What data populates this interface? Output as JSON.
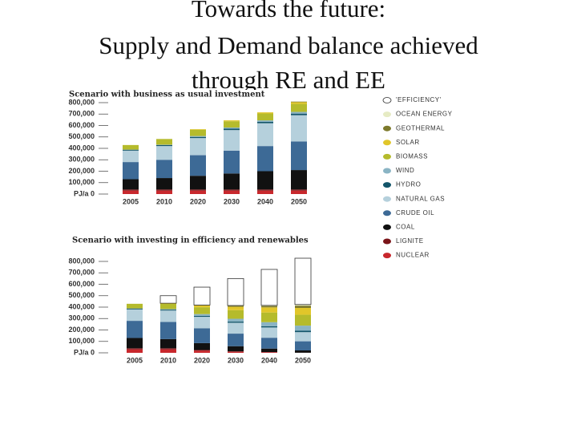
{
  "header": {
    "title": "Towards the future:",
    "subtitle_line1": "Supply and Demand balance achieved",
    "subtitle_line2": "through RE and EE"
  },
  "chart_data": [
    {
      "type": "stacked-bar",
      "title": "Scenario with business as usual investment",
      "categories": [
        "2005",
        "2010",
        "2020",
        "2030",
        "2040",
        "2050"
      ],
      "ylim": [
        0,
        800000
      ],
      "yticks": [
        {
          "value": 0,
          "label": "PJ/a 0"
        },
        {
          "value": 100000,
          "label": "100,000"
        },
        {
          "value": 200000,
          "label": "200,000"
        },
        {
          "value": 300000,
          "label": "300,000"
        },
        {
          "value": 400000,
          "label": "400,000"
        },
        {
          "value": 500000,
          "label": "500,000"
        },
        {
          "value": 600000,
          "label": "600,000"
        },
        {
          "value": 700000,
          "label": "700,000"
        },
        {
          "value": 800000,
          "label": "800,000"
        }
      ],
      "series": [
        {
          "name": "NUCLEAR",
          "color": "#c8282d",
          "values": [
            30000,
            30000,
            30000,
            30000,
            30000,
            30000
          ]
        },
        {
          "name": "LIGNITE",
          "color": "#7a1418",
          "values": [
            10000,
            10000,
            10000,
            10000,
            10000,
            10000
          ]
        },
        {
          "name": "COAL",
          "color": "#111111",
          "values": [
            90000,
            100000,
            120000,
            140000,
            160000,
            170000
          ]
        },
        {
          "name": "CRUDE OIL",
          "color": "#3d6a96",
          "values": [
            150000,
            160000,
            180000,
            200000,
            220000,
            250000
          ]
        },
        {
          "name": "NATURAL GAS",
          "color": "#b5d0dc",
          "values": [
            100000,
            120000,
            150000,
            180000,
            200000,
            230000
          ]
        },
        {
          "name": "HYDRO",
          "color": "#13556a",
          "values": [
            8000,
            9000,
            10000,
            12000,
            13000,
            14000
          ]
        },
        {
          "name": "WIND",
          "color": "#8ab4c4",
          "values": [
            1000,
            3000,
            8000,
            10000,
            12000,
            15000
          ]
        },
        {
          "name": "BIOMASS",
          "color": "#b5bb2c",
          "values": [
            40000,
            50000,
            55000,
            55000,
            60000,
            70000
          ]
        },
        {
          "name": "SOLAR",
          "color": "#e1c62a",
          "values": [
            0,
            0,
            5000,
            8000,
            10000,
            15000
          ]
        },
        {
          "name": "GEOTHERMAL",
          "color": "#7d7a2c",
          "values": [
            0,
            0,
            0,
            0,
            0,
            5000
          ]
        },
        {
          "name": "OCEAN ENERGY",
          "color": "#e6ebc4",
          "values": [
            0,
            0,
            0,
            0,
            0,
            0
          ]
        },
        {
          "name": "'EFFICIENCY'",
          "color": "#ffffff",
          "values": [
            0,
            0,
            0,
            0,
            0,
            0
          ]
        }
      ]
    },
    {
      "type": "stacked-bar",
      "title": "Scenario with  investing in efficiency and renewables",
      "categories": [
        "2005",
        "2010",
        "2020",
        "2030",
        "2040",
        "2050"
      ],
      "ylim": [
        0,
        800000
      ],
      "yticks": [
        {
          "value": 0,
          "label": "PJ/a 0"
        },
        {
          "value": 100000,
          "label": "100,000"
        },
        {
          "value": 200000,
          "label": "200,000"
        },
        {
          "value": 300000,
          "label": "300,000"
        },
        {
          "value": 400000,
          "label": "400,000"
        },
        {
          "value": 500000,
          "label": "500,000"
        },
        {
          "value": 600000,
          "label": "600,000"
        },
        {
          "value": 700000,
          "label": "700,000"
        },
        {
          "value": 800000,
          "label": "800,000"
        }
      ],
      "series": [
        {
          "values": [
            30000,
            30000,
            20000,
            10000,
            5000,
            0
          ]
        },
        {
          "values": [
            10000,
            10000,
            5000,
            3000,
            2000,
            1000
          ]
        },
        {
          "values": [
            90000,
            80000,
            60000,
            45000,
            30000,
            20000
          ]
        },
        {
          "values": [
            150000,
            150000,
            130000,
            110000,
            95000,
            80000
          ]
        },
        {
          "values": [
            100000,
            100000,
            100000,
            95000,
            90000,
            80000
          ]
        },
        {
          "values": [
            8000,
            8000,
            9000,
            10000,
            11000,
            12000
          ]
        },
        {
          "values": [
            1000,
            5000,
            15000,
            25000,
            35000,
            45000
          ]
        },
        {
          "values": [
            40000,
            45000,
            60000,
            75000,
            85000,
            95000
          ]
        },
        {
          "values": [
            0,
            6000,
            15000,
            30000,
            45000,
            60000
          ]
        },
        {
          "values": [
            0,
            0,
            3000,
            8000,
            12000,
            20000
          ]
        },
        {
          "values": [
            0,
            0,
            1000,
            3000,
            5000,
            10000
          ]
        },
        {
          "values": [
            0,
            66000,
            157000,
            236000,
            315000,
            405000
          ]
        }
      ]
    }
  ]
}
